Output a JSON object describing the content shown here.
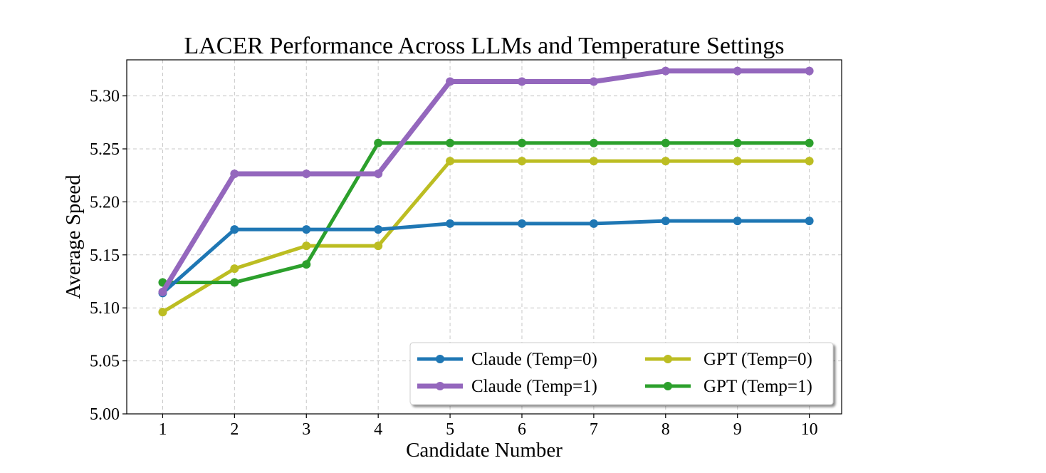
{
  "chart_data": {
    "type": "line",
    "title": "LACER Performance Across LLMs and Temperature Settings",
    "xlabel": "Candidate Number",
    "ylabel": "Average Speed",
    "x": [
      1,
      2,
      3,
      4,
      5,
      6,
      7,
      8,
      9,
      10
    ],
    "x_ticks": [
      "1",
      "2",
      "3",
      "4",
      "5",
      "6",
      "7",
      "8",
      "9",
      "10"
    ],
    "xlim": [
      0.5,
      10.45
    ],
    "ylim": [
      5.0,
      5.334
    ],
    "y_ticks": [
      5.0,
      5.05,
      5.1,
      5.15,
      5.2,
      5.25,
      5.3
    ],
    "y_tick_labels": [
      "5.00",
      "5.05",
      "5.10",
      "5.15",
      "5.20",
      "5.25",
      "5.30"
    ],
    "grid": true,
    "legend_position": "lower-right",
    "series": [
      {
        "name": "Claude (Temp=0)",
        "color": "#1f77b4",
        "values": [
          5.114,
          5.174,
          5.174,
          5.174,
          5.1795,
          5.1795,
          5.1795,
          5.182,
          5.182,
          5.182
        ]
      },
      {
        "name": "Claude (Temp=1)",
        "color": "#9467bd",
        "values": [
          5.115,
          5.2265,
          5.2265,
          5.2265,
          5.3135,
          5.3135,
          5.3135,
          5.3235,
          5.3235,
          5.3235
        ]
      },
      {
        "name": "GPT (Temp=0)",
        "color": "#bcbd22",
        "values": [
          5.096,
          5.137,
          5.1585,
          5.1585,
          5.2385,
          5.2385,
          5.2385,
          5.2385,
          5.2385,
          5.2385
        ]
      },
      {
        "name": "GPT (Temp=1)",
        "color": "#2ca02c",
        "values": [
          5.124,
          5.124,
          5.141,
          5.2555,
          5.2555,
          5.2555,
          5.2555,
          5.2555,
          5.2555,
          5.2555
        ]
      }
    ]
  }
}
